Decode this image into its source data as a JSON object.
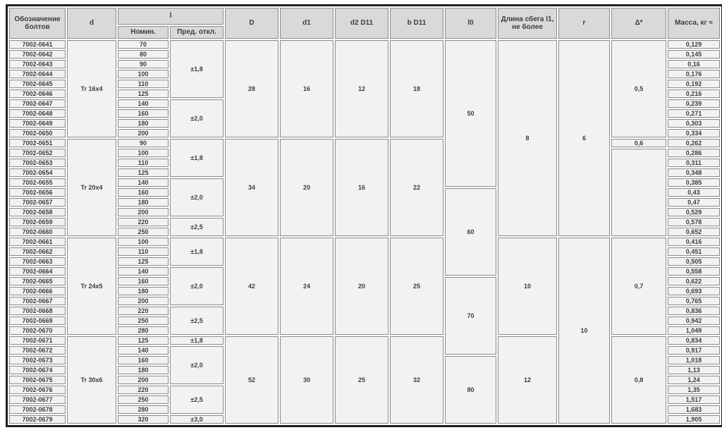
{
  "colors": {
    "header_bg": "#d9d9d9",
    "cell_bg": "#f2f2f2",
    "grid_border": "#8a8a8a",
    "outer_border": "#1f1f1f",
    "text": "#3d3d3d"
  },
  "table": {
    "headers": {
      "designation": "Обозначение болтов",
      "d": "d",
      "l_group": "l",
      "l_nom": "Номин.",
      "l_dev": "Пред. откл.",
      "D": "D",
      "d1": "d1",
      "d2": "d2 D11",
      "b": "b D11",
      "l0": "l0",
      "runout": "Длина сбега l1, не более",
      "r": "r",
      "delta": "Δ*",
      "mass": "Масса, кг ≈"
    },
    "rows": [
      {
        "designation": "7002-0641",
        "l_nom": "70",
        "mass": "0,129"
      },
      {
        "designation": "7002-0642",
        "l_nom": "80",
        "mass": "0,145"
      },
      {
        "designation": "7002-0643",
        "l_nom": "90",
        "mass": "0,16"
      },
      {
        "designation": "7002-0644",
        "l_nom": "100",
        "mass": "0,176"
      },
      {
        "designation": "7002-0645",
        "l_nom": "110",
        "mass": "0,192"
      },
      {
        "designation": "7002-0646",
        "l_nom": "125",
        "mass": "0,216"
      },
      {
        "designation": "7002-0647",
        "l_nom": "140",
        "mass": "0,239"
      },
      {
        "designation": "7002-0648",
        "l_nom": "160",
        "mass": "0,271"
      },
      {
        "designation": "7002-0649",
        "l_nom": "180",
        "mass": "0,303"
      },
      {
        "designation": "7002-0650",
        "l_nom": "200",
        "mass": "0,334"
      },
      {
        "designation": "7002-0651",
        "l_nom": "90",
        "mass": "0,262"
      },
      {
        "designation": "7002-0652",
        "l_nom": "100",
        "mass": "0,286"
      },
      {
        "designation": "7002-0653",
        "l_nom": "110",
        "mass": "0,311"
      },
      {
        "designation": "7002-0654",
        "l_nom": "125",
        "mass": "0,348"
      },
      {
        "designation": "7002-0655",
        "l_nom": "140",
        "mass": "0,385"
      },
      {
        "designation": "7002-0656",
        "l_nom": "160",
        "mass": "0,43"
      },
      {
        "designation": "7002-0657",
        "l_nom": "180",
        "mass": "0,47"
      },
      {
        "designation": "7002-0658",
        "l_nom": "200",
        "mass": "0,529"
      },
      {
        "designation": "7002-0659",
        "l_nom": "220",
        "mass": "0,578"
      },
      {
        "designation": "7002-0660",
        "l_nom": "250",
        "mass": "0,652"
      },
      {
        "designation": "7002-0661",
        "l_nom": "100",
        "mass": "0,416"
      },
      {
        "designation": "7002-0662",
        "l_nom": "110",
        "mass": "0,451"
      },
      {
        "designation": "7002-0663",
        "l_nom": "125",
        "mass": "0,505"
      },
      {
        "designation": "7002-0664",
        "l_nom": "140",
        "mass": "0,558"
      },
      {
        "designation": "7002-0665",
        "l_nom": "160",
        "mass": "0,622"
      },
      {
        "designation": "7002-0666",
        "l_nom": "180",
        "mass": "0,693"
      },
      {
        "designation": "7002-0667",
        "l_nom": "200",
        "mass": "0,765"
      },
      {
        "designation": "7002-0668",
        "l_nom": "220",
        "mass": "0,836"
      },
      {
        "designation": "7002-0669",
        "l_nom": "250",
        "mass": "0,942"
      },
      {
        "designation": "7002-0670",
        "l_nom": "280",
        "mass": "1,049"
      },
      {
        "designation": "7002-0671",
        "l_nom": "125",
        "mass": "0,834"
      },
      {
        "designation": "7002-0672",
        "l_nom": "140",
        "mass": "0,917"
      },
      {
        "designation": "7002-0673",
        "l_nom": "160",
        "mass": "1,018"
      },
      {
        "designation": "7002-0674",
        "l_nom": "180",
        "mass": "1,13"
      },
      {
        "designation": "7002-0675",
        "l_nom": "200",
        "mass": "1,24"
      },
      {
        "designation": "7002-0676",
        "l_nom": "220",
        "mass": "1,35"
      },
      {
        "designation": "7002-0677",
        "l_nom": "250",
        "mass": "1,517"
      },
      {
        "designation": "7002-0678",
        "l_nom": "280",
        "mass": "1,683"
      },
      {
        "designation": "7002-0679",
        "l_nom": "320",
        "mass": "1,905"
      }
    ],
    "merge_columns": {
      "d": [
        {
          "v": "Tr 16x4",
          "start": 0,
          "span": 10
        },
        {
          "v": "Tr 20x4",
          "start": 10,
          "span": 10
        },
        {
          "v": "Tr 24x5",
          "start": 20,
          "span": 10
        },
        {
          "v": "Tr 30x6",
          "start": 30,
          "span": 9
        }
      ],
      "l_dev": [
        {
          "v": "±1,8",
          "start": 0,
          "span": 6
        },
        {
          "v": "±2,0",
          "start": 6,
          "span": 4
        },
        {
          "v": "±1,8",
          "start": 10,
          "span": 4
        },
        {
          "v": "±2,0",
          "start": 14,
          "span": 4
        },
        {
          "v": "±2,5",
          "start": 18,
          "span": 2
        },
        {
          "v": "±1,8",
          "start": 20,
          "span": 3
        },
        {
          "v": "±2,0",
          "start": 23,
          "span": 4
        },
        {
          "v": "±2,5",
          "start": 27,
          "span": 3
        },
        {
          "v": "±1,8",
          "start": 30,
          "span": 1
        },
        {
          "v": "±2,0",
          "start": 31,
          "span": 4
        },
        {
          "v": "±2,5",
          "start": 35,
          "span": 3
        },
        {
          "v": "±3,0",
          "start": 38,
          "span": 1
        }
      ],
      "D": [
        {
          "v": "28",
          "start": 0,
          "span": 10
        },
        {
          "v": "34",
          "start": 10,
          "span": 10
        },
        {
          "v": "42",
          "start": 20,
          "span": 10
        },
        {
          "v": "52",
          "start": 30,
          "span": 9
        }
      ],
      "d1": [
        {
          "v": "16",
          "start": 0,
          "span": 10
        },
        {
          "v": "20",
          "start": 10,
          "span": 10
        },
        {
          "v": "24",
          "start": 20,
          "span": 10
        },
        {
          "v": "30",
          "start": 30,
          "span": 9
        }
      ],
      "d2": [
        {
          "v": "12",
          "start": 0,
          "span": 10
        },
        {
          "v": "16",
          "start": 10,
          "span": 10
        },
        {
          "v": "20",
          "start": 20,
          "span": 10
        },
        {
          "v": "25",
          "start": 30,
          "span": 9
        }
      ],
      "b": [
        {
          "v": "18",
          "start": 0,
          "span": 10
        },
        {
          "v": "22",
          "start": 10,
          "span": 10
        },
        {
          "v": "25",
          "start": 20,
          "span": 10
        },
        {
          "v": "32",
          "start": 30,
          "span": 9
        }
      ],
      "l0": [
        {
          "v": "50",
          "start": 0,
          "span": 15
        },
        {
          "v": "60",
          "start": 15,
          "span": 9
        },
        {
          "v": "70",
          "start": 24,
          "span": 8
        },
        {
          "v": "80",
          "start": 32,
          "span": 7
        }
      ],
      "runout": [
        {
          "v": "8",
          "start": 0,
          "span": 20
        },
        {
          "v": "10",
          "start": 20,
          "span": 10
        },
        {
          "v": "12",
          "start": 30,
          "span": 9
        }
      ],
      "r": [
        {
          "v": "6",
          "start": 0,
          "span": 20
        },
        {
          "v": "10",
          "start": 20,
          "span": 19
        }
      ],
      "delta": [
        {
          "v": "0,5",
          "start": 0,
          "span": 10
        },
        {
          "v": "0,6",
          "start": 10,
          "span": 1
        },
        {
          "v": "",
          "start": 11,
          "span": 9
        },
        {
          "v": "0,7",
          "start": 20,
          "span": 10
        },
        {
          "v": "0,8",
          "start": 30,
          "span": 9
        }
      ]
    }
  }
}
